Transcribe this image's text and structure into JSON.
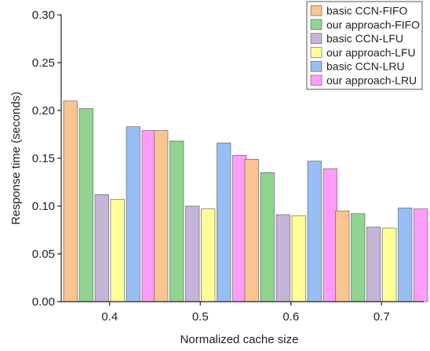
{
  "chart_data": {
    "type": "bar",
    "title": "",
    "xlabel": "Normalized cache size",
    "ylabel": "Response time (seconds)",
    "categories": [
      "0.4",
      "0.5",
      "0.6",
      "0.7"
    ],
    "ylim": [
      0,
      0.3
    ],
    "yticks": [
      "0.00",
      "0.05",
      "0.10",
      "0.15",
      "0.20",
      "0.25",
      "0.30"
    ],
    "grid": false,
    "legend_position": "top-right",
    "series": [
      {
        "name": "basic CCN-FIFO",
        "color": "#f9c48f",
        "values": [
          0.21,
          0.179,
          0.149,
          0.095
        ]
      },
      {
        "name": "our approach-FIFO",
        "color": "#90d48f",
        "values": [
          0.202,
          0.168,
          0.135,
          0.092
        ]
      },
      {
        "name": "basic CCN-LFU",
        "color": "#c6b4d8",
        "values": [
          0.112,
          0.1,
          0.091,
          0.078
        ]
      },
      {
        "name": "our approach-LFU",
        "color": "#ffff96",
        "values": [
          0.107,
          0.097,
          0.09,
          0.077
        ]
      },
      {
        "name": "basic CCN-LRU",
        "color": "#98bef5",
        "values": [
          0.183,
          0.166,
          0.147,
          0.098
        ]
      },
      {
        "name": "our approach-LRU",
        "color": "#fe9cfb",
        "values": [
          0.179,
          0.153,
          0.139,
          0.097
        ]
      }
    ]
  }
}
